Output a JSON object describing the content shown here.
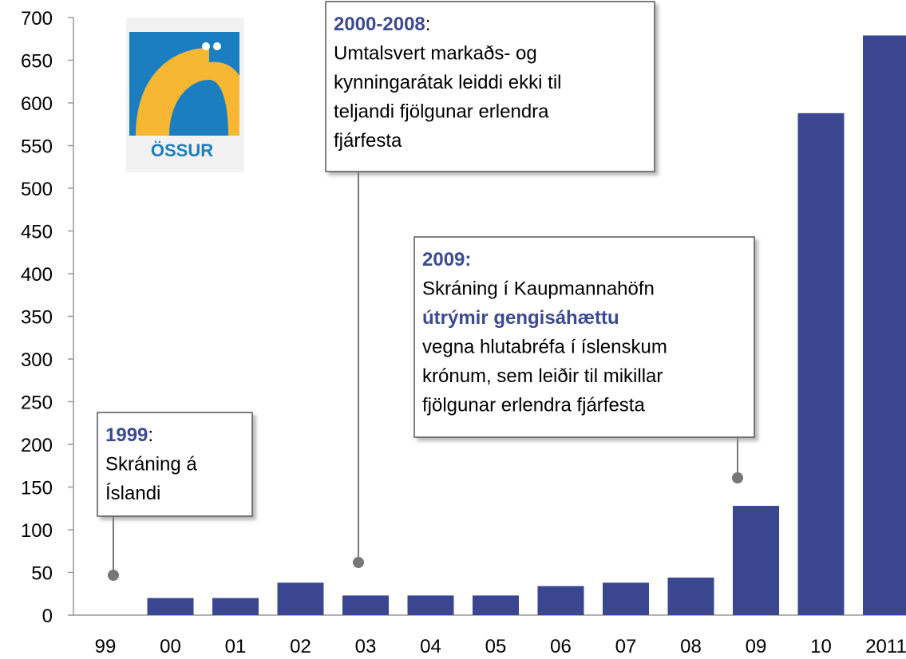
{
  "chart_data": {
    "type": "bar",
    "categories": [
      "99",
      "00",
      "01",
      "02",
      "03",
      "04",
      "05",
      "06",
      "07",
      "08",
      "09",
      "10",
      "2011"
    ],
    "values": [
      0,
      20,
      20,
      38,
      23,
      23,
      23,
      34,
      38,
      44,
      128,
      588,
      679
    ],
    "color": "#3a4690",
    "ylim": [
      0,
      700
    ],
    "yticks": [
      0,
      50,
      100,
      150,
      200,
      250,
      300,
      350,
      400,
      450,
      500,
      550,
      600,
      650,
      700
    ],
    "logo_text": "ÖSSUR",
    "annotations": [
      {
        "lines": [
          [
            {
              "text": "1999",
              "emphasis": true
            },
            {
              "text": ":"
            }
          ],
          [
            {
              "text": "Skráning á"
            }
          ],
          [
            {
              "text": "Íslandi"
            }
          ]
        ]
      },
      {
        "lines": [
          [
            {
              "text": "2000-2008",
              "emphasis": true
            },
            {
              "text": ":"
            }
          ],
          [
            {
              "text": "Umtalsvert markaðs- og"
            }
          ],
          [
            {
              "text": "kynningarátak leiddi ekki til"
            }
          ],
          [
            {
              "text": "teljandi fjölgunar erlendra"
            }
          ],
          [
            {
              "text": "fjárfesta"
            }
          ]
        ]
      },
      {
        "lines": [
          [
            {
              "text": "2009:",
              "emphasis": true
            }
          ],
          [
            {
              "text": "Skráning í Kaupmannahöfn"
            }
          ],
          [
            {
              "text": "útrýmir gengisáhættu",
              "emphasis": true
            }
          ],
          [
            {
              "text": "vegna hlutabréfa í íslenskum"
            }
          ],
          [
            {
              "text": "krónum, sem leiðir til mikillar"
            }
          ],
          [
            {
              "text": "fjölgunar erlendra fjárfesta"
            }
          ]
        ]
      }
    ]
  }
}
